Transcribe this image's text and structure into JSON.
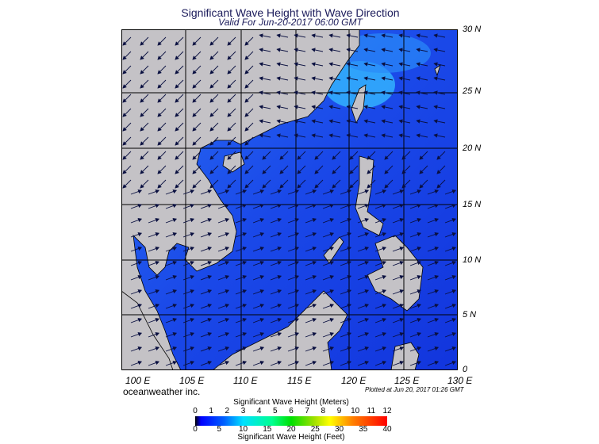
{
  "title": "Significant Wave Height with Wave Direction",
  "subtitle": "Valid For Jun-20-2017 06:00 GMT",
  "lat_labels": [
    "30 N",
    "25 N",
    "20 N",
    "15 N",
    "10 N",
    "5 N",
    "0"
  ],
  "lon_labels": [
    "100 E",
    "105 E",
    "110 E",
    "115 E",
    "120 E",
    "125 E",
    "130 E"
  ],
  "brand": "oceanweather inc.",
  "plotted": "Plotted at Jun 20, 2017 01:26 GMT",
  "colorbar": {
    "meters_title": "Significant Wave Height (Meters)",
    "feet_title": "Significant Wave Height (Feet)",
    "meters_ticks": [
      "0",
      "1",
      "2",
      "3",
      "4",
      "5",
      "6",
      "7",
      "8",
      "9",
      "10",
      "11",
      "12"
    ],
    "feet_ticks": [
      "0",
      "5",
      "10",
      "15",
      "20",
      "25",
      "30",
      "35",
      "40"
    ]
  },
  "colors": {
    "land": "#c4c2c6",
    "ocean_deep": "#1238e0",
    "ocean_mid": "#1f5cf0",
    "ocean_light": "#35b8ff",
    "arrow": "#0a1040"
  }
}
